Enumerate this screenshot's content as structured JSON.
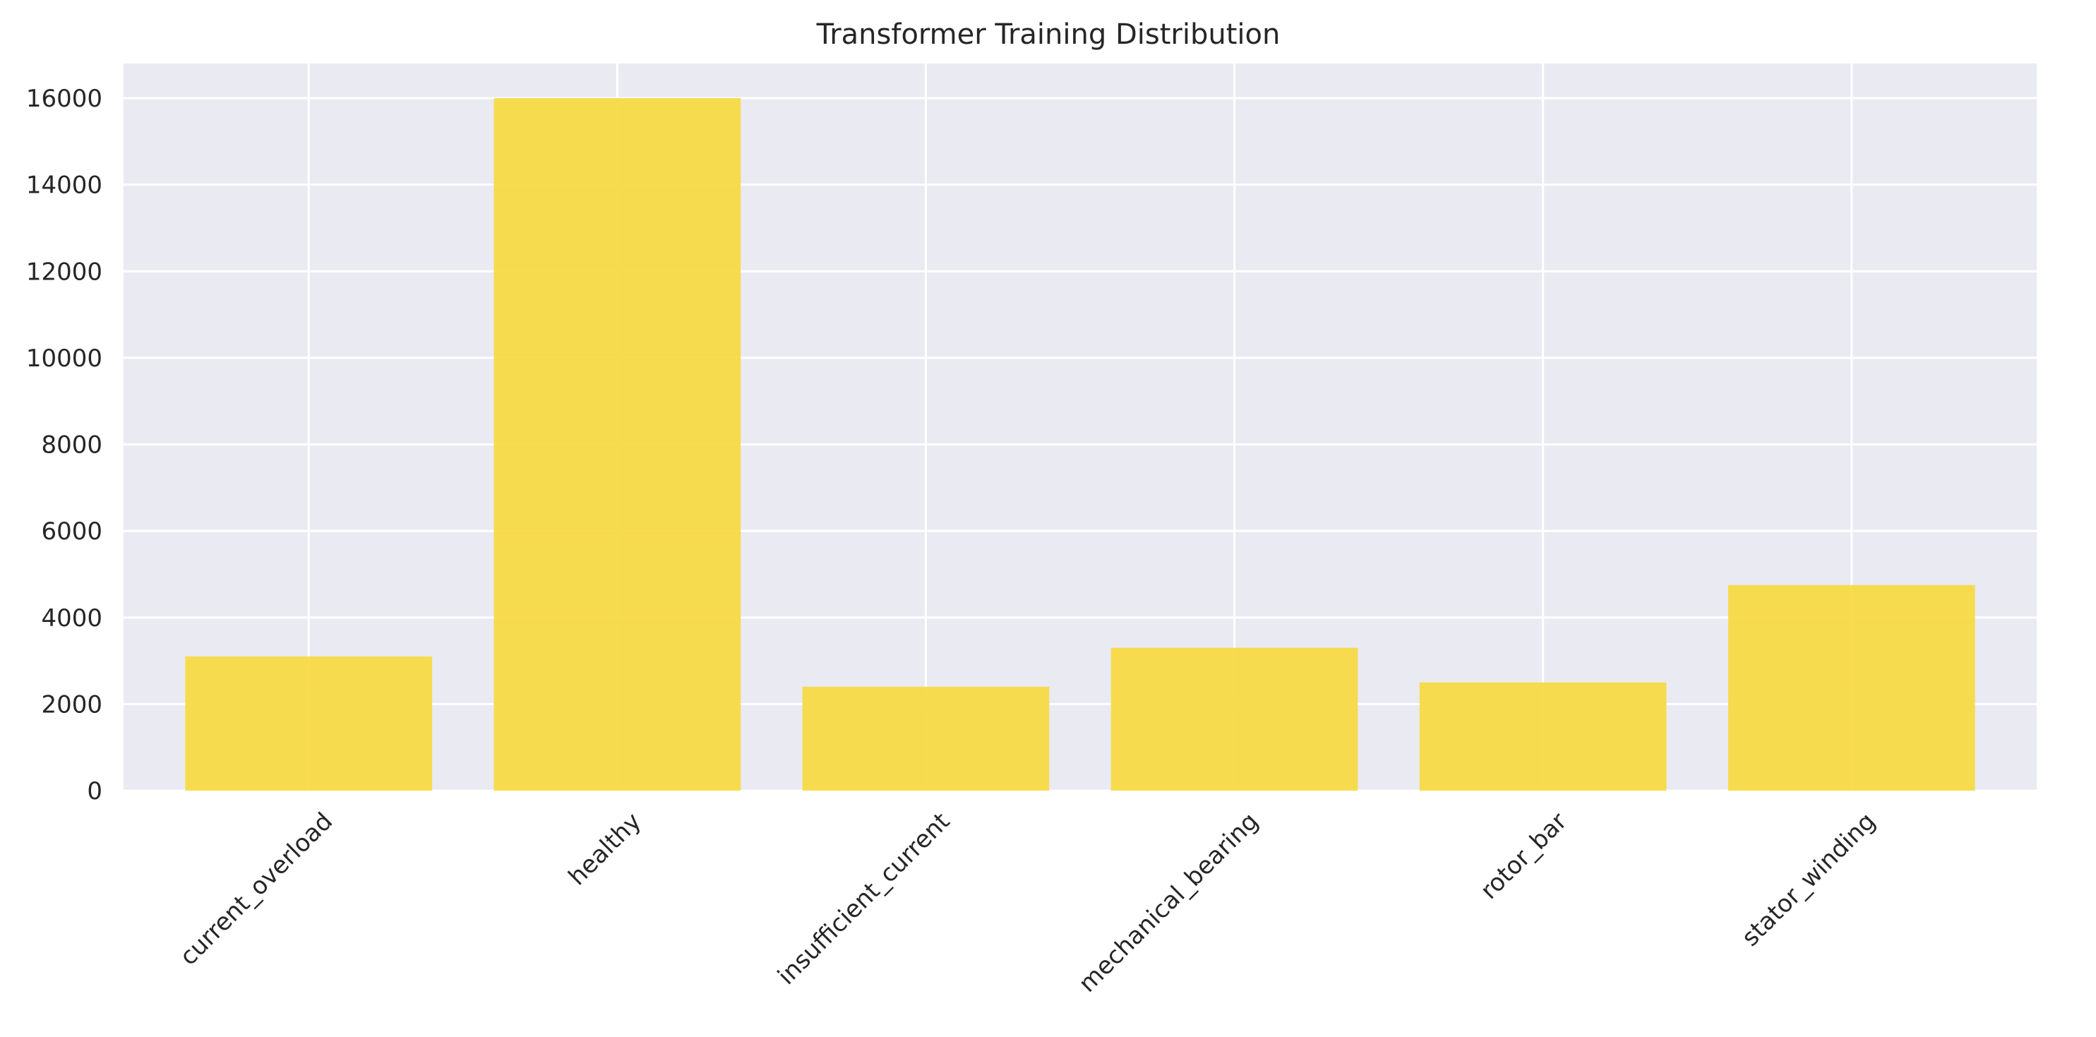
{
  "chart_data": {
    "type": "bar",
    "title": "Transformer Training Distribution",
    "xlabel": "",
    "ylabel": "",
    "categories": [
      "current_overload",
      "healthy",
      "insufficient_current",
      "mechanical_bearing",
      "rotor_bar",
      "stator_winding"
    ],
    "values": [
      3100,
      16000,
      2400,
      3300,
      2500,
      4750
    ],
    "yticks": [
      0,
      2000,
      4000,
      6000,
      8000,
      10000,
      12000,
      14000,
      16000
    ],
    "ylim": [
      0,
      16800
    ],
    "grid": true,
    "legend": "none",
    "colors": {
      "bar": "#f7d940",
      "plot_background": "#eaeaf2",
      "grid": "#ffffff",
      "text": "#262626"
    }
  }
}
